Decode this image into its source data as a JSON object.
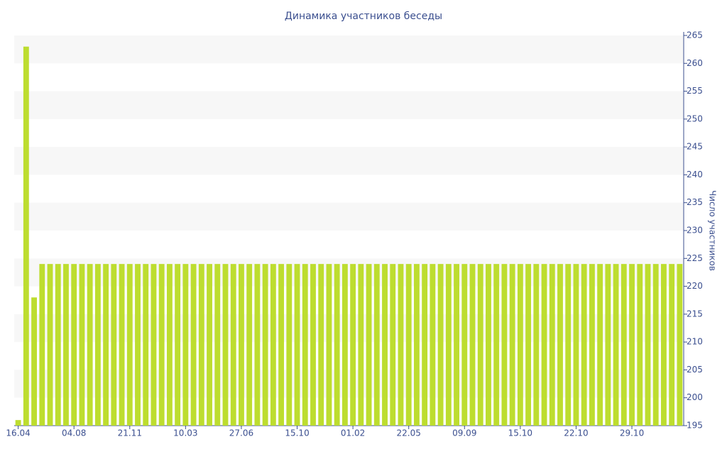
{
  "chart_data": {
    "type": "bar",
    "title": "Динамика участников беседы",
    "y_label": "Число участников",
    "categories": [
      "16.04",
      null,
      null,
      null,
      null,
      null,
      null,
      "04.08",
      null,
      null,
      null,
      null,
      null,
      null,
      "21.11",
      null,
      null,
      null,
      null,
      null,
      null,
      "10.03",
      null,
      null,
      null,
      null,
      null,
      null,
      "27.06",
      null,
      null,
      null,
      null,
      null,
      null,
      "15.10",
      null,
      null,
      null,
      null,
      null,
      null,
      "01.02",
      null,
      null,
      null,
      null,
      null,
      null,
      "22.05",
      null,
      null,
      null,
      null,
      null,
      null,
      "09.09",
      null,
      null,
      null,
      null,
      null,
      null,
      "15.10",
      null,
      null,
      null,
      null,
      null,
      null,
      "22.10",
      null,
      null,
      null,
      null,
      null,
      null,
      "29.10",
      null,
      null,
      null,
      null,
      null,
      null
    ],
    "values": [
      196,
      263,
      218,
      224,
      224,
      224,
      224,
      224,
      224,
      224,
      224,
      224,
      224,
      224,
      224,
      224,
      224,
      224,
      224,
      224,
      224,
      224,
      224,
      224,
      224,
      224,
      224,
      224,
      224,
      224,
      224,
      224,
      224,
      224,
      224,
      224,
      224,
      224,
      224,
      224,
      224,
      224,
      224,
      224,
      224,
      224,
      224,
      224,
      224,
      224,
      224,
      224,
      224,
      224,
      224,
      224,
      224,
      224,
      224,
      224,
      224,
      224,
      224,
      224,
      224,
      224,
      224,
      224,
      224,
      224,
      224,
      224,
      224,
      224,
      224,
      224,
      224,
      224,
      224,
      224,
      224,
      224,
      224,
      224
    ],
    "color": "#bddd2f",
    "ylim": [
      195,
      265
    ],
    "yticks": [
      195,
      200,
      205,
      210,
      215,
      220,
      225,
      230,
      235,
      240,
      245,
      250,
      255,
      260,
      265
    ],
    "y_axis_side": "right",
    "grid": true
  }
}
